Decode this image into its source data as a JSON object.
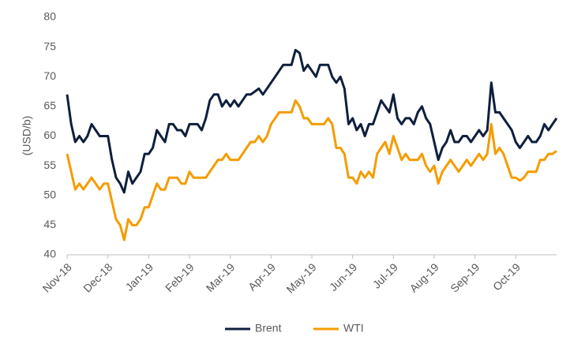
{
  "chart_data": {
    "type": "line",
    "y_label": "(USD/b)",
    "categories": [
      "Nov-18",
      null,
      null,
      null,
      null,
      null,
      null,
      null,
      null,
      null,
      "Dec-18",
      null,
      null,
      null,
      null,
      null,
      null,
      null,
      null,
      null,
      "Jan-19",
      null,
      null,
      null,
      null,
      null,
      null,
      null,
      null,
      null,
      "Feb-19",
      null,
      null,
      null,
      null,
      null,
      null,
      null,
      null,
      null,
      "Mar-19",
      null,
      null,
      null,
      null,
      null,
      null,
      null,
      null,
      null,
      "Apr-19",
      null,
      null,
      null,
      null,
      null,
      null,
      null,
      null,
      null,
      "May-19",
      null,
      null,
      null,
      null,
      null,
      null,
      null,
      null,
      null,
      "Jun-19",
      null,
      null,
      null,
      null,
      null,
      null,
      null,
      null,
      null,
      "Jul-19",
      null,
      null,
      null,
      null,
      null,
      null,
      null,
      null,
      null,
      "Aug-19",
      null,
      null,
      null,
      null,
      null,
      null,
      null,
      null,
      null,
      "Sep-19",
      null,
      null,
      null,
      null,
      null,
      null,
      null,
      null,
      null,
      "Oct-19",
      null,
      null,
      null,
      null,
      null,
      null,
      null,
      null,
      null,
      null
    ],
    "series": [
      {
        "name": "Brent",
        "color": "#0f1f3d",
        "values": [
          67,
          62,
          59,
          60,
          59,
          60,
          62,
          61,
          60,
          60,
          60,
          56,
          53,
          52,
          50.5,
          54,
          52,
          53,
          54,
          57,
          57,
          58,
          61,
          60,
          59,
          62,
          62,
          61,
          61,
          60,
          62,
          62,
          62,
          61,
          63,
          66,
          67,
          67,
          65,
          66,
          65,
          66,
          65,
          66,
          67,
          67,
          67.5,
          68,
          67,
          68,
          69,
          70,
          71,
          72,
          72,
          72,
          74.5,
          74,
          71,
          72,
          71,
          70,
          72,
          72,
          72,
          70,
          69,
          70,
          68,
          62,
          63,
          61,
          62,
          60,
          62,
          62,
          64,
          66,
          65,
          64,
          67,
          63,
          62,
          63,
          63,
          62,
          64,
          65,
          63,
          62,
          59,
          56,
          58,
          59,
          61,
          59,
          59,
          60,
          60,
          59,
          60,
          61,
          60,
          61,
          69,
          64,
          64,
          63,
          62,
          61,
          59,
          58,
          59,
          60,
          59,
          59,
          60,
          62,
          61,
          62,
          63
        ]
      },
      {
        "name": "WTI",
        "color": "#f59c00",
        "values": [
          57,
          54,
          51,
          52,
          51,
          52,
          53,
          52,
          51,
          52,
          52,
          49,
          46,
          45,
          42.5,
          46,
          45,
          45,
          46,
          48,
          48,
          50,
          52,
          51,
          51,
          53,
          53,
          53,
          52,
          52,
          54,
          53,
          53,
          53,
          53,
          54,
          55,
          56,
          56,
          57,
          56,
          56,
          56,
          57,
          58,
          59,
          59,
          60,
          59,
          60,
          62,
          63,
          64,
          64,
          64,
          64,
          66,
          65,
          63,
          63,
          62,
          62,
          62,
          62,
          63,
          62,
          58,
          58,
          57,
          53,
          53,
          52,
          54,
          53,
          54,
          53,
          57,
          58,
          59,
          57,
          60,
          58,
          56,
          57,
          56,
          56,
          56,
          57,
          55,
          54,
          55,
          52,
          54,
          55,
          56,
          55,
          54,
          55,
          56,
          55,
          56,
          57,
          56,
          57,
          62,
          57,
          58,
          57,
          55,
          53,
          53,
          52.5,
          53,
          54,
          54,
          54,
          56,
          56,
          57,
          57,
          57.5
        ]
      }
    ],
    "ylim": [
      40,
      80
    ],
    "yticks": [
      40,
      45,
      50,
      55,
      60,
      65,
      70,
      75,
      80
    ],
    "legend": "bottom"
  }
}
